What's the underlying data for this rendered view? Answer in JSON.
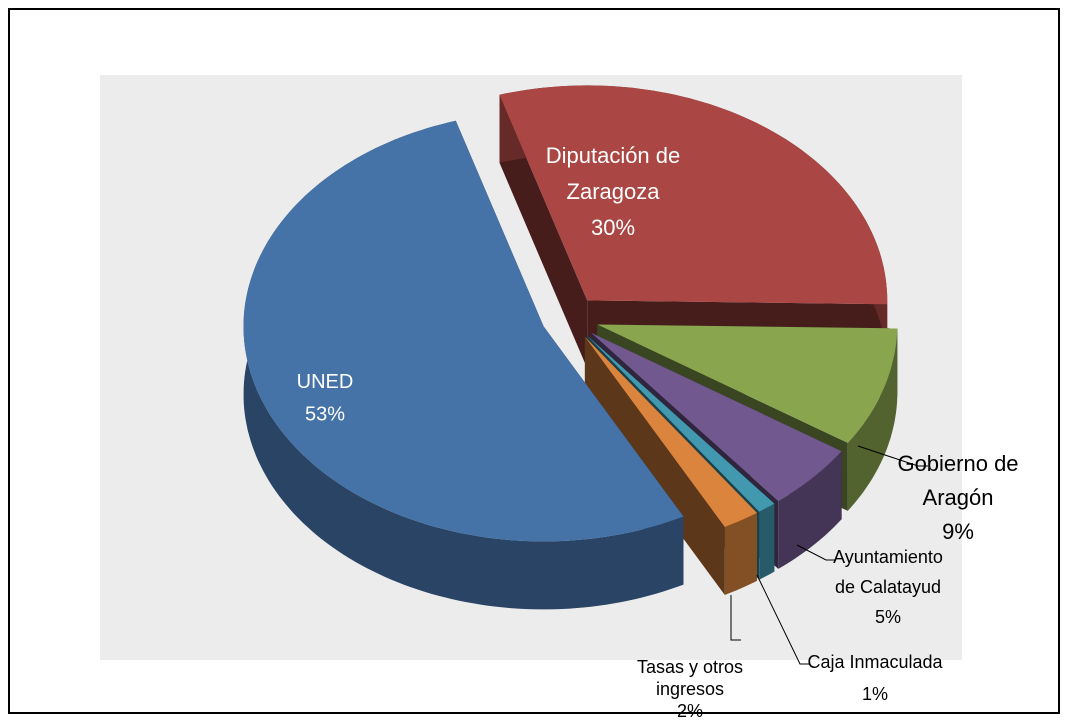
{
  "chart_data": {
    "type": "pie",
    "categories": [
      "Diputación de Zaragoza",
      "Gobierno de Aragón",
      "Ayuntamiento de Calatayud",
      "Caja Inmaculada",
      "Tasas y otros ingresos",
      "UNED"
    ],
    "values": [
      30,
      9,
      5,
      1,
      2,
      53
    ],
    "value_labels": [
      "30%",
      "9%",
      "5%",
      "1%",
      "2%",
      "53%"
    ],
    "colors": [
      "#aa4643",
      "#89a54e",
      "#71588f",
      "#4198af",
      "#db843d",
      "#4572a7"
    ]
  }
}
